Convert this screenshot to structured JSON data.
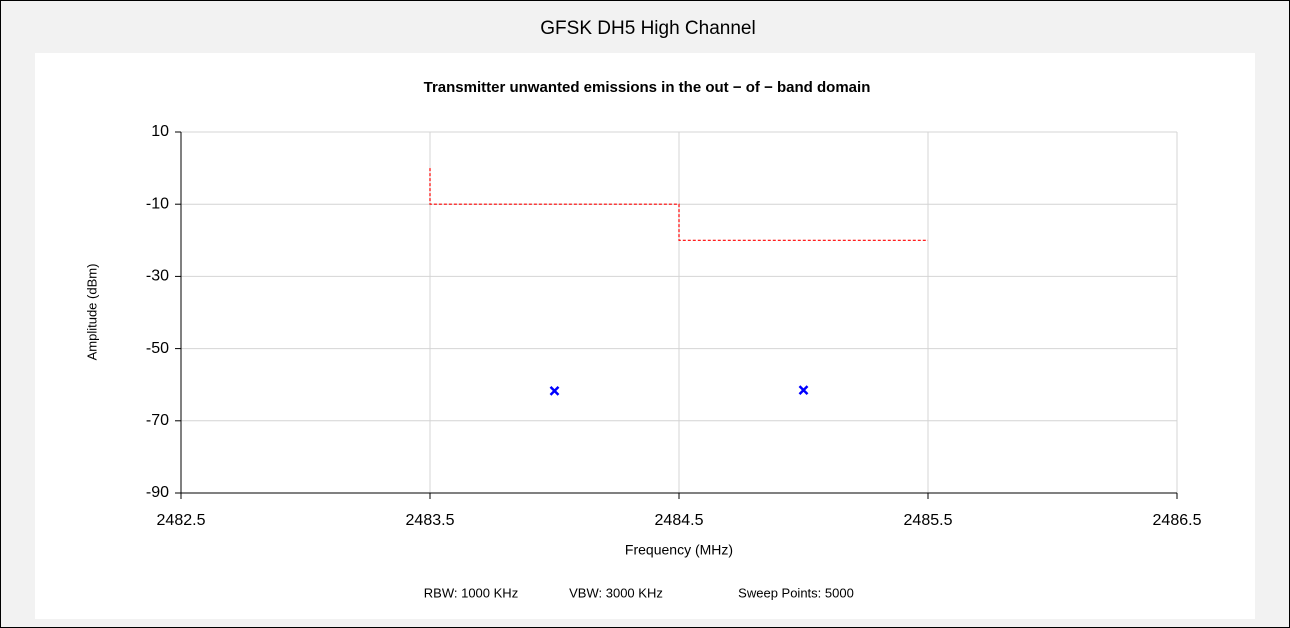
{
  "header": "GFSK DH5 High Channel",
  "chart_data": {
    "type": "line",
    "title": "Transmitter unwanted emissions in the out − of − band domain",
    "xlabel": "Frequency (MHz)",
    "ylabel": "Amplitude (dBm)",
    "xlim": [
      2482.5,
      2486.5
    ],
    "xticks": [
      2482.5,
      2483.5,
      2484.5,
      2485.5,
      2486.5
    ],
    "ylim": [
      -90,
      10
    ],
    "yticks": [
      10,
      -10,
      -30,
      -50,
      -70,
      -90
    ],
    "grid": true,
    "series": [
      {
        "color": "#ff0000",
        "dash": true,
        "x": [
          2483.5,
          2483.5,
          2484.5,
          2484.5,
          2485.5
        ],
        "values": [
          0,
          -10,
          -10,
          -20,
          -20
        ]
      },
      {
        "color": "#0000ff",
        "marker": "x",
        "x": [
          2484.0,
          2485.0
        ],
        "values": [
          -61.7,
          -61.5
        ]
      }
    ]
  },
  "footer": [
    "RBW: 1000 KHz",
    "VBW: 3000 KHz",
    "Sweep Points: 5000"
  ]
}
